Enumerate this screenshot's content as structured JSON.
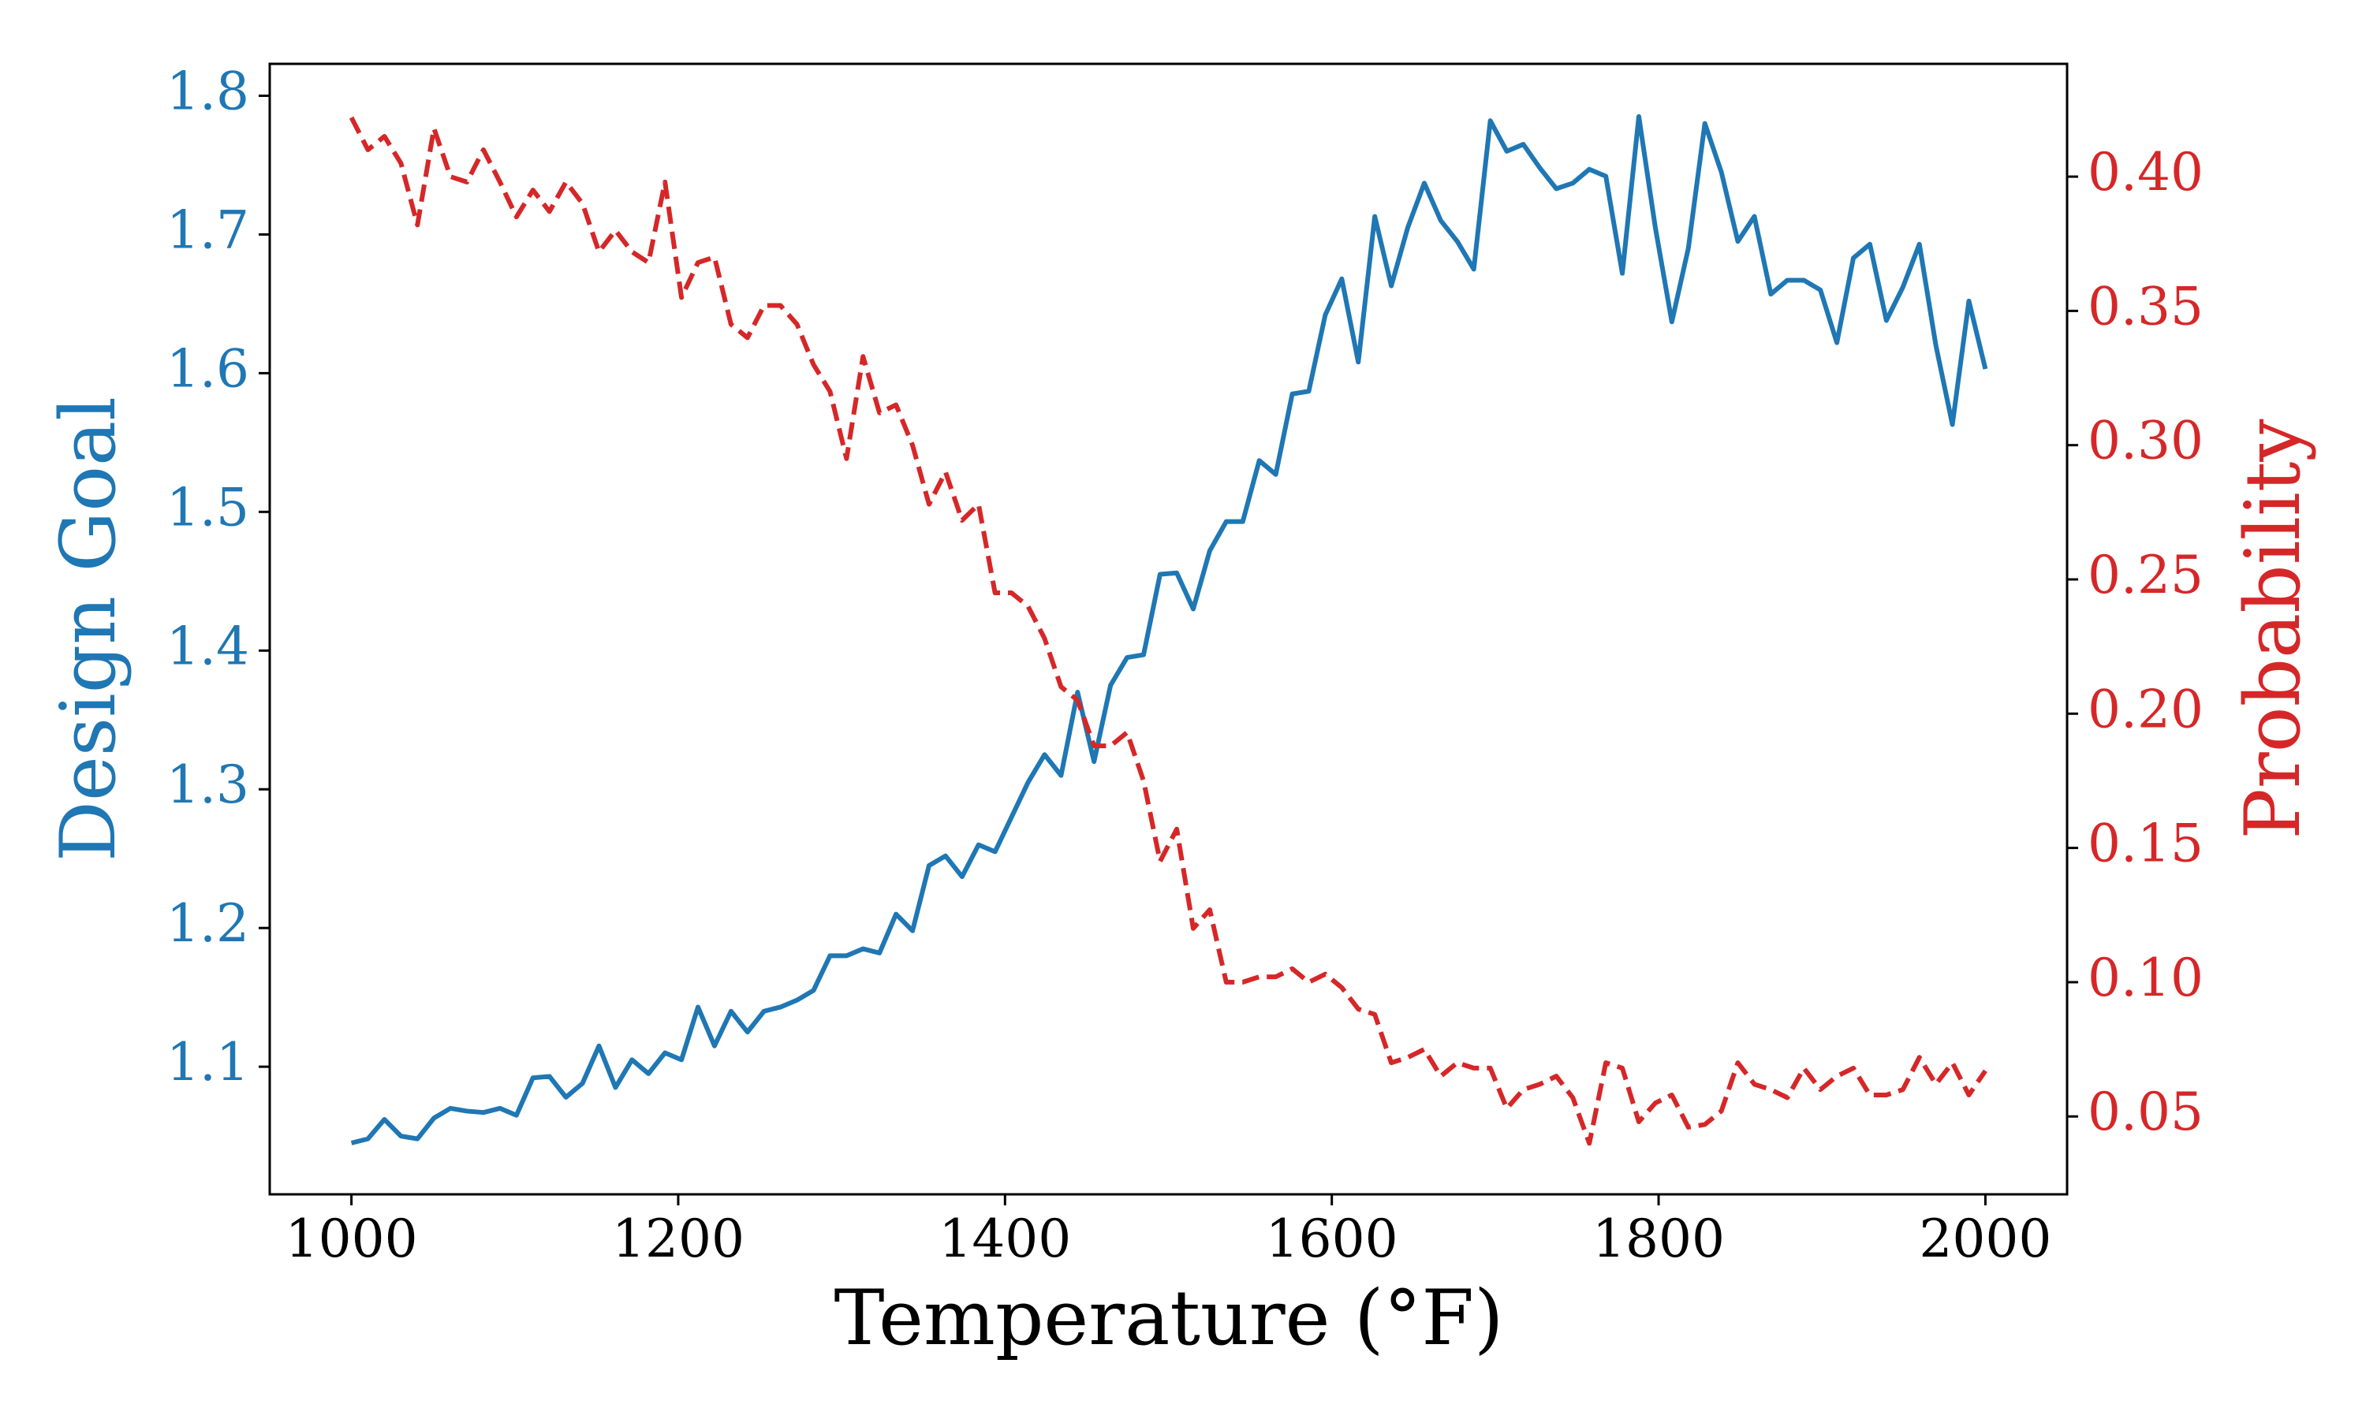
{
  "chart_data": {
    "type": "line",
    "xlabel": "Temperature (°F)",
    "ylabel": "Design Goal",
    "y2label": "Probability",
    "xlim": [
      950,
      2050
    ],
    "xticks": [
      1000,
      1200,
      1400,
      1600,
      1800,
      2000
    ],
    "ylim": [
      1.008,
      1.823
    ],
    "yticks": [
      1.1,
      1.2,
      1.3,
      1.4,
      1.5,
      1.6,
      1.7,
      1.8
    ],
    "y2lim": [
      0.021,
      0.442
    ],
    "y2ticks": [
      {
        "value": 0.05,
        "label": "0.05"
      },
      {
        "value": 0.1,
        "label": "0.10"
      },
      {
        "value": 0.15,
        "label": "0.15"
      },
      {
        "value": 0.2,
        "label": "0.20"
      },
      {
        "value": 0.25,
        "label": "0.25"
      },
      {
        "value": 0.3,
        "label": "0.30"
      },
      {
        "value": 0.35,
        "label": "0.35"
      },
      {
        "value": 0.4,
        "label": "0.40"
      }
    ],
    "ycolor": "#1f77b4",
    "y2color": "#d62728",
    "x": [
      1000,
      1010.1,
      1020.2,
      1030.3,
      1040.4,
      1050.5,
      1060.6,
      1070.7,
      1080.8,
      1090.9,
      1101.0,
      1111.1,
      1121.2,
      1131.3,
      1141.4,
      1151.5,
      1161.6,
      1171.7,
      1181.8,
      1191.9,
      1202.0,
      1212.1,
      1222.2,
      1232.3,
      1242.4,
      1252.5,
      1262.6,
      1272.7,
      1282.8,
      1292.9,
      1303.0,
      1313.1,
      1323.2,
      1333.3,
      1343.4,
      1353.5,
      1363.6,
      1373.7,
      1383.8,
      1393.9,
      1404.0,
      1414.1,
      1424.2,
      1434.3,
      1444.4,
      1454.5,
      1464.6,
      1474.7,
      1484.8,
      1494.9,
      1505.1,
      1515.2,
      1525.3,
      1535.4,
      1545.5,
      1555.6,
      1565.7,
      1575.8,
      1585.9,
      1596.0,
      1606.1,
      1616.2,
      1626.3,
      1636.4,
      1646.5,
      1656.6,
      1666.7,
      1676.8,
      1686.9,
      1697.0,
      1707.1,
      1717.2,
      1727.3,
      1737.4,
      1747.5,
      1757.6,
      1767.7,
      1777.8,
      1787.9,
      1798.0,
      1808.1,
      1818.2,
      1828.3,
      1838.4,
      1848.5,
      1858.6,
      1868.7,
      1878.8,
      1888.9,
      1899.0,
      1909.1,
      1919.2,
      1929.3,
      1939.4,
      1949.5,
      1959.6,
      1969.7,
      1979.8,
      1989.9,
      2000
    ],
    "series": [
      {
        "name": "Design Goal",
        "color": "#1f77b4",
        "dash": false,
        "values": [
          1.045,
          1.048,
          1.062,
          1.05,
          1.048,
          1.063,
          1.07,
          1.068,
          1.067,
          1.07,
          1.065,
          1.092,
          1.093,
          1.078,
          1.088,
          1.115,
          1.085,
          1.105,
          1.095,
          1.11,
          1.105,
          1.143,
          1.115,
          1.14,
          1.125,
          1.14,
          1.143,
          1.148,
          1.155,
          1.18,
          1.18,
          1.185,
          1.182,
          1.21,
          1.198,
          1.245,
          1.252,
          1.237,
          1.26,
          1.255,
          1.28,
          1.305,
          1.325,
          1.31,
          1.37,
          1.32,
          1.375,
          1.395,
          1.397,
          1.455,
          1.456,
          1.43,
          1.472,
          1.493,
          1.493,
          1.537,
          1.527,
          1.585,
          1.587,
          1.642,
          1.668,
          1.608,
          1.713,
          1.663,
          1.705,
          1.737,
          1.71,
          1.695,
          1.675,
          1.782,
          1.76,
          1.765,
          1.748,
          1.733,
          1.737,
          1.747,
          1.742,
          1.672,
          1.785,
          1.705,
          1.637,
          1.69,
          1.78,
          1.745,
          1.695,
          1.713,
          1.657,
          1.667,
          1.667,
          1.66,
          1.622,
          1.683,
          1.693,
          1.638,
          1.662,
          1.693,
          1.62,
          1.563,
          1.652,
          1.603
        ]
      },
      {
        "name": "Probability",
        "color": "#d62728",
        "dash": true,
        "axis": "y2",
        "values": [
          0.422,
          0.41,
          0.415,
          0.405,
          0.382,
          0.418,
          0.4,
          0.398,
          0.41,
          0.398,
          0.385,
          0.395,
          0.387,
          0.398,
          0.39,
          0.372,
          0.38,
          0.372,
          0.368,
          0.398,
          0.355,
          0.368,
          0.37,
          0.345,
          0.34,
          0.352,
          0.352,
          0.345,
          0.33,
          0.32,
          0.295,
          0.333,
          0.312,
          0.315,
          0.3,
          0.278,
          0.29,
          0.272,
          0.278,
          0.245,
          0.245,
          0.24,
          0.228,
          0.21,
          0.205,
          0.188,
          0.188,
          0.193,
          0.175,
          0.145,
          0.157,
          0.12,
          0.127,
          0.1,
          0.1,
          0.102,
          0.102,
          0.105,
          0.1,
          0.103,
          0.098,
          0.09,
          0.088,
          0.07,
          0.072,
          0.075,
          0.065,
          0.07,
          0.068,
          0.068,
          0.053,
          0.06,
          0.062,
          0.065,
          0.057,
          0.04,
          0.07,
          0.068,
          0.048,
          0.055,
          0.058,
          0.046,
          0.047,
          0.052,
          0.07,
          0.062,
          0.06,
          0.057,
          0.068,
          0.06,
          0.065,
          0.068,
          0.058,
          0.058,
          0.06,
          0.072,
          0.062,
          0.07,
          0.058,
          0.067
        ]
      }
    ]
  }
}
